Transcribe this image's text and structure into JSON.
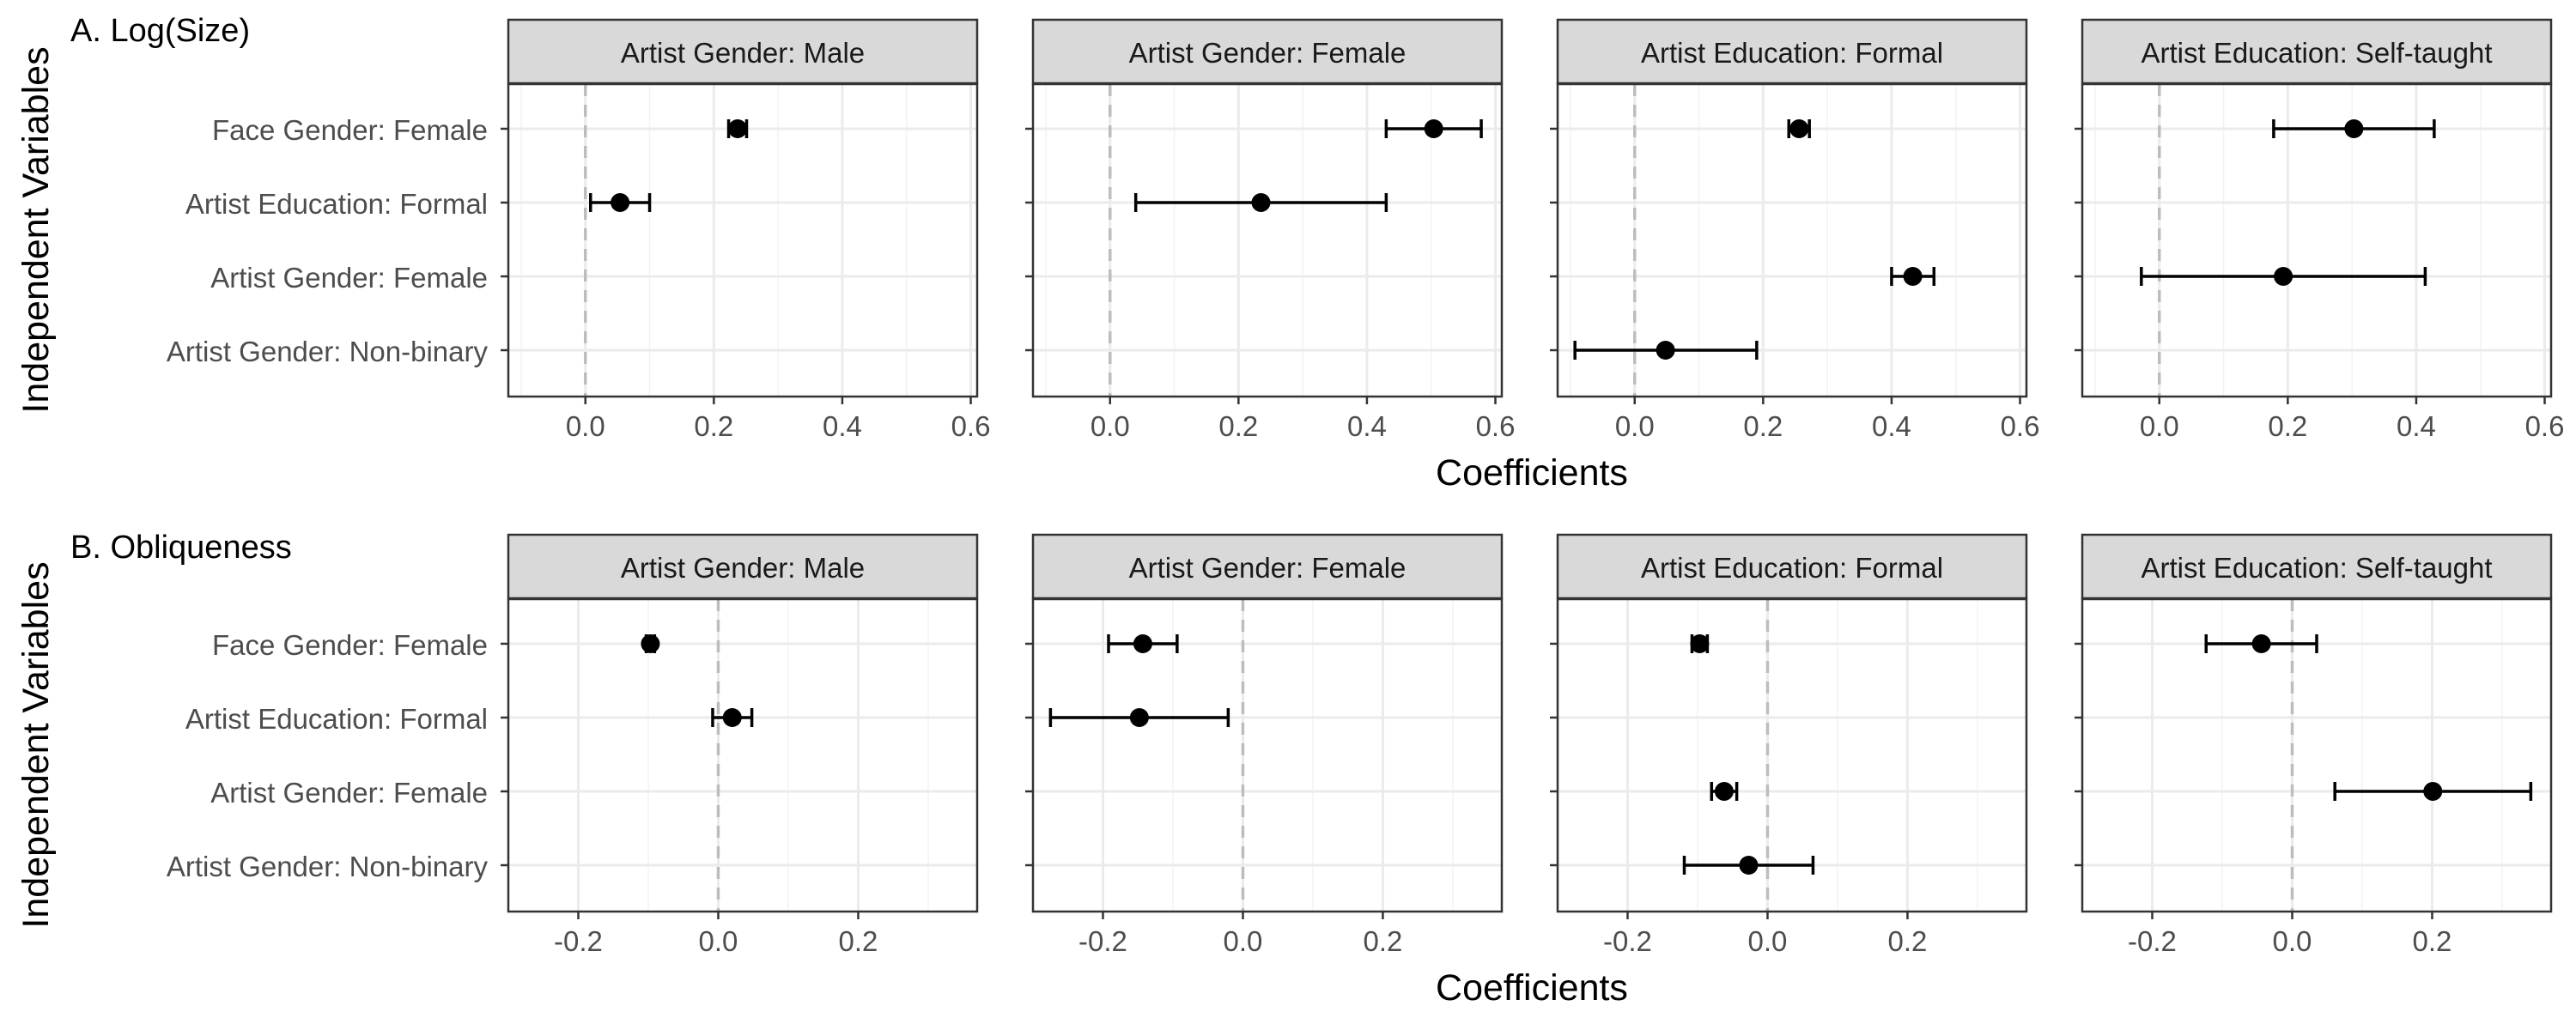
{
  "chart_data": {
    "type": "scatter",
    "subtype": "coefficient-plot",
    "xlabel": "Coefficients",
    "ylabel": "Independent Variables",
    "colors": {
      "point": "#000000",
      "strip_fill": "#d9d9d9",
      "strip_border": "#333333",
      "grid": "#ebebeb",
      "zero_line": "#bdbdbd",
      "panel_border": "#333333",
      "tick_label": "#4d4d4d"
    },
    "grid": true,
    "reference_line": 0,
    "categories": [
      "Face Gender: Female",
      "Artist Education: Formal",
      "Artist Gender: Female",
      "Artist Gender: Non-binary"
    ],
    "facets": [
      "Artist Gender: Male",
      "Artist Gender: Female",
      "Artist Education: Formal",
      "Artist Education: Self-taught"
    ],
    "rows": [
      {
        "title": "A. Log(Size)",
        "xlim": [
          -0.12,
          0.61
        ],
        "xticks": [
          0,
          0.2,
          0.4,
          0.6
        ],
        "xtick_labels": [
          "0.0",
          "0.2",
          "0.4",
          "0.6"
        ],
        "panels": [
          {
            "facet": "Artist Gender: Male",
            "points": [
              {
                "category": "Face Gender: Female",
                "estimate": 0.237,
                "low": 0.223,
                "high": 0.251
              },
              {
                "category": "Artist Education: Formal",
                "estimate": 0.054,
                "low": 0.008,
                "high": 0.1
              },
              {
                "category": "Artist Gender: Female",
                "estimate": null,
                "low": null,
                "high": null
              },
              {
                "category": "Artist Gender: Non-binary",
                "estimate": null,
                "low": null,
                "high": null
              }
            ]
          },
          {
            "facet": "Artist Gender: Female",
            "points": [
              {
                "category": "Face Gender: Female",
                "estimate": 0.504,
                "low": 0.43,
                "high": 0.578
              },
              {
                "category": "Artist Education: Formal",
                "estimate": 0.235,
                "low": 0.04,
                "high": 0.43
              },
              {
                "category": "Artist Gender: Female",
                "estimate": null,
                "low": null,
                "high": null
              },
              {
                "category": "Artist Gender: Non-binary",
                "estimate": null,
                "low": null,
                "high": null
              }
            ]
          },
          {
            "facet": "Artist Education: Formal",
            "points": [
              {
                "category": "Face Gender: Female",
                "estimate": 0.256,
                "low": 0.24,
                "high": 0.272
              },
              {
                "category": "Artist Education: Formal",
                "estimate": null,
                "low": null,
                "high": null
              },
              {
                "category": "Artist Gender: Female",
                "estimate": 0.433,
                "low": 0.4,
                "high": 0.466
              },
              {
                "category": "Artist Gender: Non-binary",
                "estimate": 0.048,
                "low": -0.093,
                "high": 0.19
              }
            ]
          },
          {
            "facet": "Artist Education: Self-taught",
            "points": [
              {
                "category": "Face Gender: Female",
                "estimate": 0.303,
                "low": 0.178,
                "high": 0.428
              },
              {
                "category": "Artist Education: Formal",
                "estimate": null,
                "low": null,
                "high": null
              },
              {
                "category": "Artist Gender: Female",
                "estimate": 0.193,
                "low": -0.028,
                "high": 0.414
              },
              {
                "category": "Artist Gender: Non-binary",
                "estimate": null,
                "low": null,
                "high": null
              }
            ]
          }
        ]
      },
      {
        "title": "B. Obliqueness",
        "xlim": [
          -0.3,
          0.37
        ],
        "xticks": [
          -0.2,
          0,
          0.2
        ],
        "xtick_labels": [
          "-0.2",
          "0.0",
          "0.2"
        ],
        "panels": [
          {
            "facet": "Artist Gender: Male",
            "points": [
              {
                "category": "Face Gender: Female",
                "estimate": -0.097,
                "low": -0.103,
                "high": -0.091
              },
              {
                "category": "Artist Education: Formal",
                "estimate": 0.02,
                "low": -0.008,
                "high": 0.048
              },
              {
                "category": "Artist Gender: Female",
                "estimate": null,
                "low": null,
                "high": null
              },
              {
                "category": "Artist Gender: Non-binary",
                "estimate": null,
                "low": null,
                "high": null
              }
            ]
          },
          {
            "facet": "Artist Gender: Female",
            "points": [
              {
                "category": "Face Gender: Female",
                "estimate": -0.143,
                "low": -0.192,
                "high": -0.094
              },
              {
                "category": "Artist Education: Formal",
                "estimate": -0.148,
                "low": -0.275,
                "high": -0.021
              },
              {
                "category": "Artist Gender: Female",
                "estimate": null,
                "low": null,
                "high": null
              },
              {
                "category": "Artist Gender: Non-binary",
                "estimate": null,
                "low": null,
                "high": null
              }
            ]
          },
          {
            "facet": "Artist Education: Formal",
            "points": [
              {
                "category": "Face Gender: Female",
                "estimate": -0.097,
                "low": -0.108,
                "high": -0.086
              },
              {
                "category": "Artist Education: Formal",
                "estimate": null,
                "low": null,
                "high": null
              },
              {
                "category": "Artist Gender: Female",
                "estimate": -0.062,
                "low": -0.08,
                "high": -0.044
              },
              {
                "category": "Artist Gender: Non-binary",
                "estimate": -0.027,
                "low": -0.119,
                "high": 0.065
              }
            ]
          },
          {
            "facet": "Artist Education: Self-taught",
            "points": [
              {
                "category": "Face Gender: Female",
                "estimate": -0.044,
                "low": -0.123,
                "high": 0.035
              },
              {
                "category": "Artist Education: Formal",
                "estimate": null,
                "low": null,
                "high": null
              },
              {
                "category": "Artist Gender: Female",
                "estimate": 0.201,
                "low": 0.061,
                "high": 0.341
              },
              {
                "category": "Artist Gender: Non-binary",
                "estimate": null,
                "low": null,
                "high": null
              }
            ]
          }
        ]
      }
    ]
  }
}
